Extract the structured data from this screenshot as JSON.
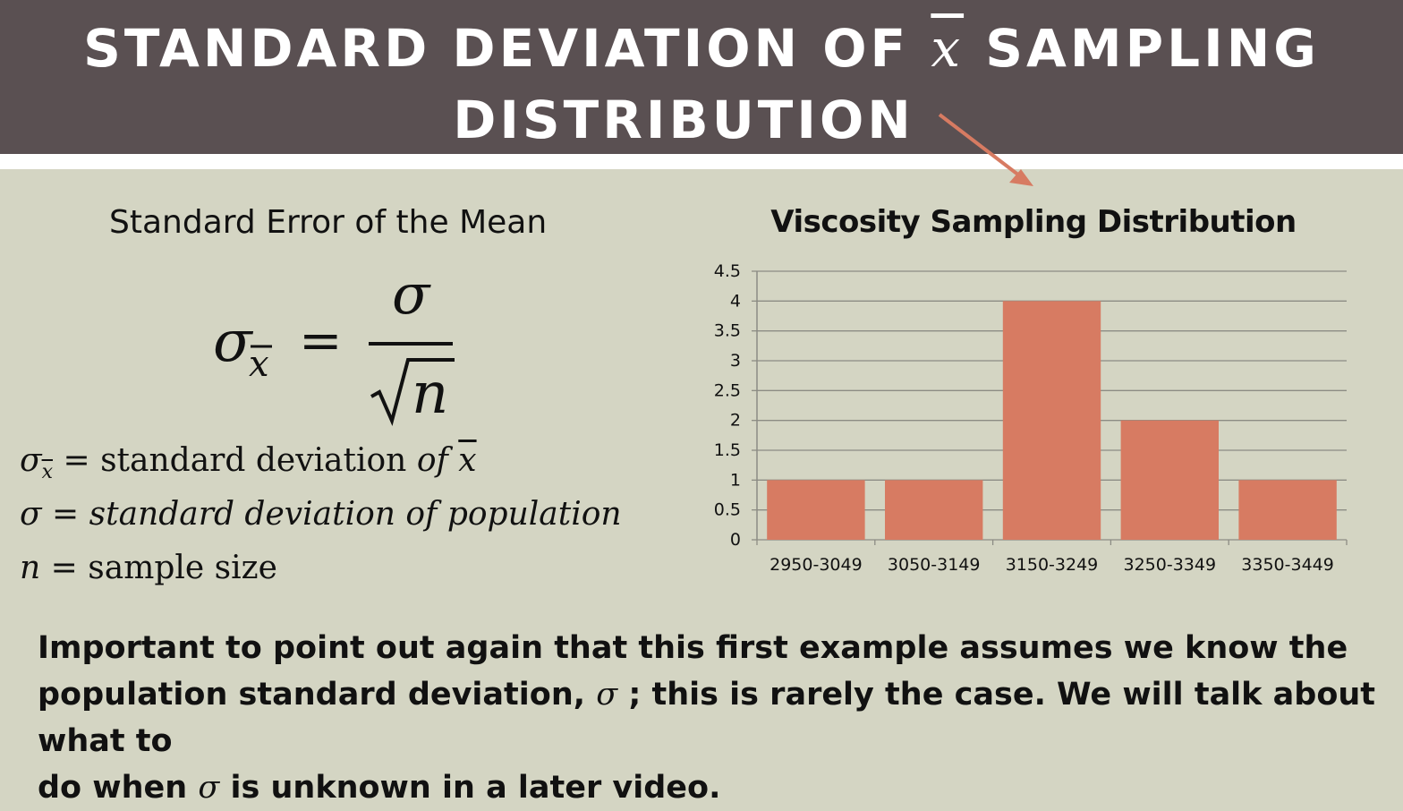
{
  "title": {
    "line1_pre": "STANDARD DEVIATION OF ",
    "xbar": "x",
    "line1_post": " SAMPLING",
    "line2": "DISTRIBUTION"
  },
  "left": {
    "heading": "Standard Error of the Mean",
    "formula": {
      "lhs": "σ",
      "lhs_sub": "x",
      "equals": "=",
      "numerator": "σ",
      "denominator": "n"
    },
    "definitions": [
      {
        "symbol": "σ",
        "sub": "x",
        "eq": " = ",
        "text": "standard deviation ",
        "italic": "of ",
        "xbar": "x"
      },
      {
        "symbol": "σ",
        "eq": " = ",
        "italic": "standard deviation of population"
      },
      {
        "symbol": "n",
        "eq": " = ",
        "text": "sample size"
      }
    ]
  },
  "chart_data": {
    "type": "bar",
    "title": "Viscosity Sampling Distribution",
    "categories": [
      "2950-3049",
      "3050-3149",
      "3150-3249",
      "3250-3349",
      "3350-3449"
    ],
    "values": [
      1,
      1,
      4,
      2,
      1
    ],
    "ylim": [
      0,
      4.5
    ],
    "yticks": [
      "0",
      "0.5",
      "1",
      "1.5",
      "2",
      "2.5",
      "3",
      "3.5",
      "4",
      "4.5"
    ],
    "grid": true,
    "bar_color": "#d77b62",
    "xlabel": "",
    "ylabel": ""
  },
  "body": {
    "line1": "Important to point out again that this first example assumes we know the",
    "line2_pre": "population standard deviation, ",
    "sigma": "σ",
    "line2_post": " ; this is rarely the case. We will talk about what to",
    "line3_pre": "do when ",
    "line3_post": " is unknown in a later video."
  },
  "colors": {
    "header": "#5a5052",
    "background": "#d4d5c3",
    "accent": "#d77b62"
  }
}
